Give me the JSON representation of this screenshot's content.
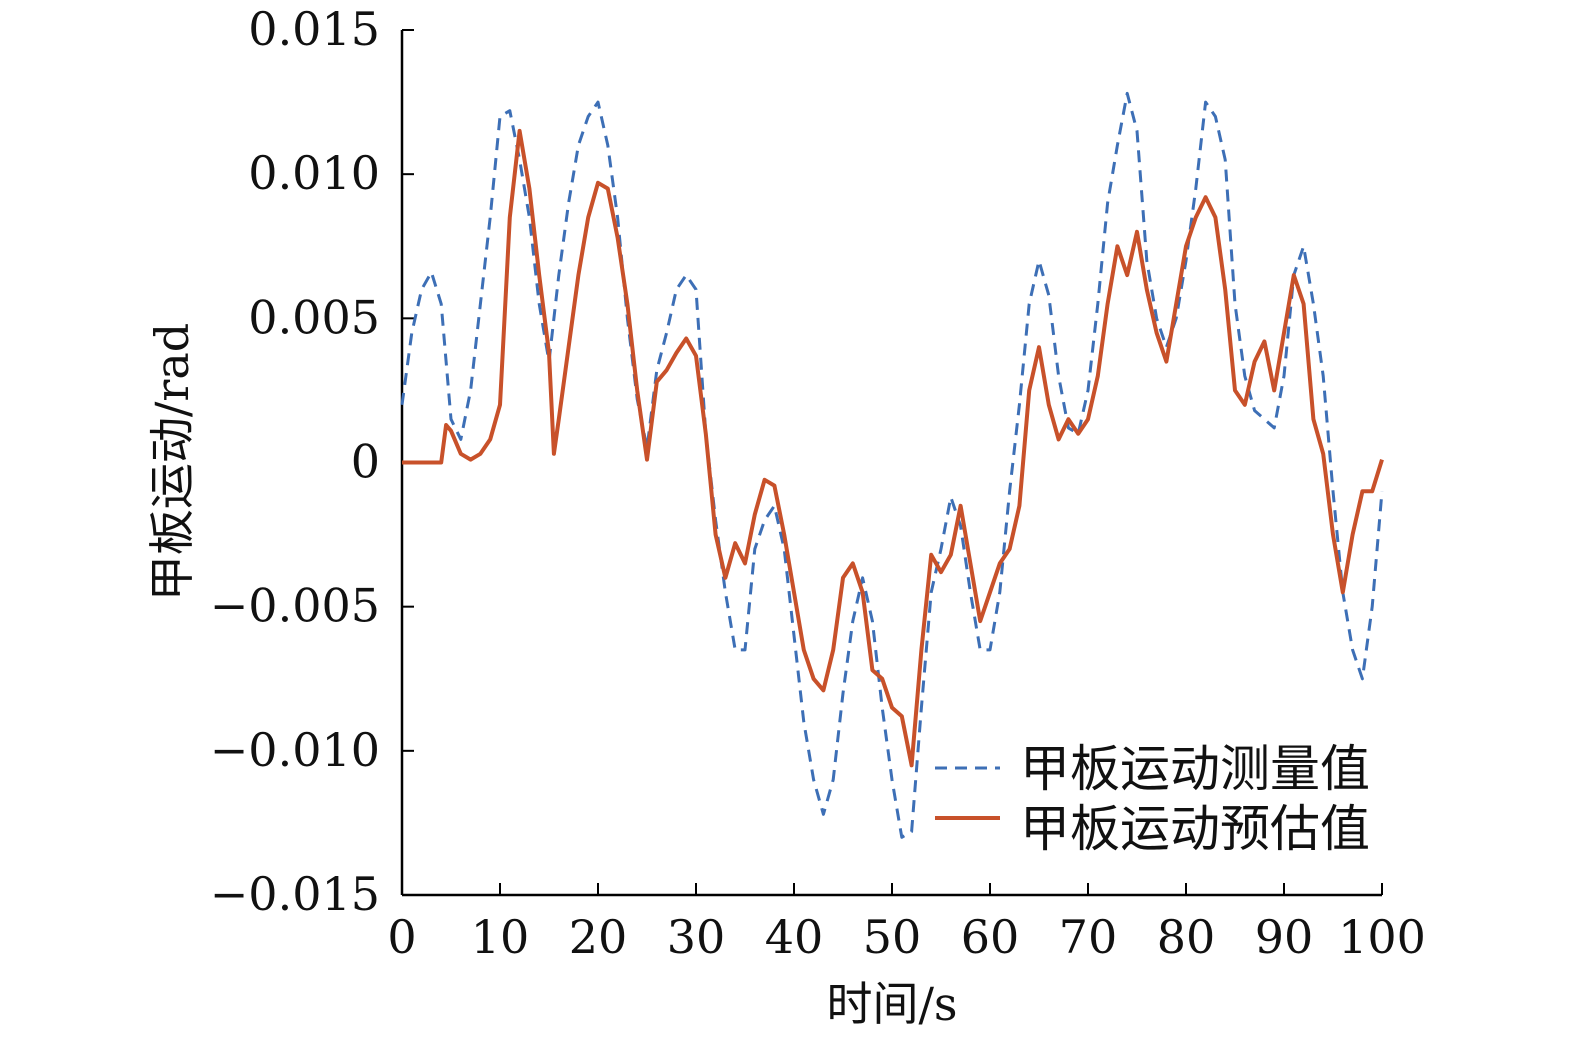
{
  "chart_data": {
    "type": "line",
    "xlabel": "时间/s",
    "ylabel": "甲板运动/rad",
    "xlim": [
      0,
      100
    ],
    "ylim": [
      -0.015,
      0.015
    ],
    "x_ticks": [
      0,
      10,
      20,
      30,
      40,
      50,
      60,
      70,
      80,
      90,
      100
    ],
    "x_tick_labels": [
      "0",
      "10",
      "20",
      "30",
      "40",
      "50",
      "60",
      "70",
      "80",
      "90",
      "100"
    ],
    "y_ticks": [
      0.015,
      0.01,
      0.005,
      0,
      -0.005,
      -0.01,
      -0.015
    ],
    "y_tick_labels": [
      "0.015",
      "0.010",
      "0.005",
      "0",
      "−0.005",
      "−0.010",
      "−0.015"
    ],
    "grid": false,
    "legend_position": "bottom-right",
    "series": [
      {
        "name": "甲板运动测量值",
        "color": "#3d6fb6",
        "dash": "dashed",
        "x": [
          0,
          1,
          2,
          3,
          4,
          5,
          6,
          7,
          8,
          9,
          10,
          11,
          12,
          13,
          14,
          15,
          16,
          17,
          18,
          19,
          20,
          21,
          22,
          23,
          24,
          25,
          26,
          27,
          28,
          29,
          30,
          31,
          32,
          33,
          34,
          35,
          36,
          37,
          38,
          39,
          40,
          41,
          42,
          43,
          44,
          45,
          46,
          47,
          48,
          49,
          50,
          51,
          52,
          53,
          54,
          55,
          56,
          57,
          58,
          59,
          60,
          61,
          62,
          63,
          64,
          65,
          66,
          67,
          68,
          69,
          70,
          71,
          72,
          73,
          74,
          75,
          76,
          77,
          78,
          79,
          80,
          81,
          82,
          83,
          84,
          85,
          86,
          87,
          88,
          89,
          90,
          91,
          92,
          93,
          94,
          95,
          96,
          97,
          98,
          99,
          100
        ],
        "y": [
          0.002,
          0.0045,
          0.006,
          0.0066,
          0.0055,
          0.0015,
          0.0008,
          0.0025,
          0.0055,
          0.0085,
          0.012,
          0.0122,
          0.0105,
          0.0085,
          0.0055,
          0.0035,
          0.0065,
          0.009,
          0.011,
          0.012,
          0.0125,
          0.011,
          0.0085,
          0.005,
          0.0022,
          0.0005,
          0.0032,
          0.0045,
          0.006,
          0.0065,
          0.006,
          0.001,
          -0.002,
          -0.0045,
          -0.0065,
          -0.0065,
          -0.003,
          -0.002,
          -0.0015,
          -0.003,
          -0.006,
          -0.009,
          -0.011,
          -0.0122,
          -0.011,
          -0.008,
          -0.0055,
          -0.004,
          -0.0055,
          -0.0085,
          -0.011,
          -0.013,
          -0.0128,
          -0.0085,
          -0.0045,
          -0.003,
          -0.0012,
          -0.0022,
          -0.0045,
          -0.0065,
          -0.0065,
          -0.0045,
          -0.001,
          0.002,
          0.0055,
          0.007,
          0.0058,
          0.003,
          0.0012,
          0.001,
          0.0025,
          0.0055,
          0.009,
          0.011,
          0.0128,
          0.0115,
          0.007,
          0.005,
          0.004,
          0.005,
          0.007,
          0.0095,
          0.0125,
          0.012,
          0.0105,
          0.0055,
          0.003,
          0.0018,
          0.0015,
          0.0012,
          0.003,
          0.0065,
          0.0075,
          0.0055,
          0.003,
          -0.001,
          -0.0045,
          -0.0065,
          -0.0075,
          -0.005,
          -0.001
        ]
      },
      {
        "name": "甲板运动预估值",
        "color": "#c8512a",
        "dash": "solid",
        "x": [
          0,
          1,
          2,
          3,
          4,
          4.5,
          5,
          6,
          7,
          8,
          9,
          10,
          11,
          12,
          13,
          14,
          15,
          15.5,
          16,
          17,
          18,
          19,
          20,
          21,
          22,
          23,
          24,
          25,
          26,
          27,
          28,
          29,
          30,
          31,
          32,
          33,
          34,
          35,
          36,
          37,
          38,
          39,
          40,
          41,
          42,
          43,
          44,
          45,
          46,
          47,
          48,
          49,
          50,
          51,
          52,
          53,
          54,
          55,
          56,
          57,
          58,
          59,
          60,
          61,
          62,
          63,
          64,
          65,
          66,
          67,
          68,
          69,
          70,
          71,
          72,
          73,
          74,
          75,
          76,
          77,
          78,
          79,
          80,
          81,
          82,
          83,
          84,
          85,
          86,
          87,
          88,
          89,
          90,
          91,
          92,
          93,
          94,
          95,
          96,
          97,
          98,
          99,
          100
        ],
        "y": [
          0,
          0,
          0,
          0,
          0,
          0.0013,
          0.0011,
          0.0003,
          0.0001,
          0.0003,
          0.0008,
          0.002,
          0.0085,
          0.0115,
          0.0095,
          0.0065,
          0.0038,
          0.0003,
          0.0015,
          0.004,
          0.0065,
          0.0085,
          0.0097,
          0.0095,
          0.0078,
          0.0055,
          0.0025,
          0.0001,
          0.0028,
          0.0032,
          0.0038,
          0.0043,
          0.0037,
          0.001,
          -0.0025,
          -0.004,
          -0.0028,
          -0.0035,
          -0.0018,
          -0.0006,
          -0.0008,
          -0.0025,
          -0.0045,
          -0.0065,
          -0.0075,
          -0.0079,
          -0.0065,
          -0.004,
          -0.0035,
          -0.0045,
          -0.0072,
          -0.0075,
          -0.0085,
          -0.0088,
          -0.0105,
          -0.0065,
          -0.0032,
          -0.0038,
          -0.0032,
          -0.0015,
          -0.0035,
          -0.0055,
          -0.0045,
          -0.0035,
          -0.003,
          -0.0015,
          0.0025,
          0.004,
          0.002,
          0.0008,
          0.0015,
          0.001,
          0.0015,
          0.003,
          0.0055,
          0.0075,
          0.0065,
          0.008,
          0.006,
          0.0045,
          0.0035,
          0.0055,
          0.0075,
          0.0085,
          0.0092,
          0.0085,
          0.006,
          0.0025,
          0.002,
          0.0035,
          0.0042,
          0.0025,
          0.0045,
          0.0065,
          0.0055,
          0.0015,
          0.0003,
          -0.0025,
          -0.0045,
          -0.0025,
          -0.001,
          -0.001,
          0.0001
        ]
      }
    ]
  }
}
